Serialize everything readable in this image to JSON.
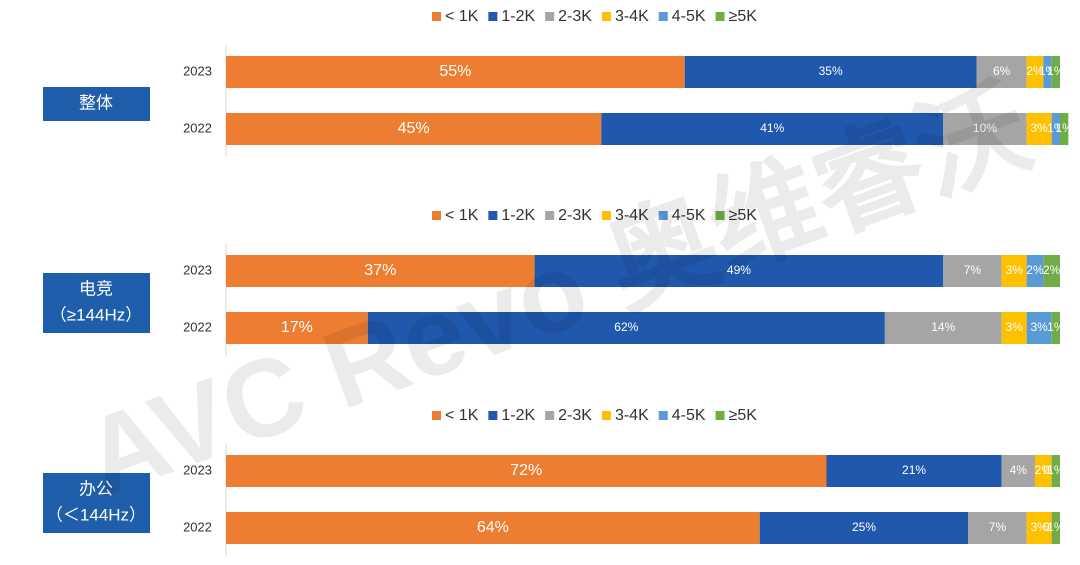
{
  "watermark": "AVC Revo 奥维睿沃",
  "chart_data": [
    {
      "type": "bar",
      "orientation": "horizontal",
      "stacked": true,
      "group_label": [
        "整体"
      ],
      "categories": [
        "2023",
        "2022"
      ],
      "xlim": [
        0,
        100
      ],
      "series": [
        {
          "name": "< 1K",
          "color": "#ed7d31",
          "values": [
            55,
            45
          ],
          "value_labels": [
            "55%",
            "45%"
          ]
        },
        {
          "name": "1-2K",
          "color": "#2058ad",
          "values": [
            35,
            41
          ],
          "value_labels": [
            "35%",
            "41%"
          ]
        },
        {
          "name": "2-3K",
          "color": "#a5a5a5",
          "values": [
            6,
            10
          ],
          "value_labels": [
            "6%",
            "10%"
          ]
        },
        {
          "name": "3-4K",
          "color": "#ffc000",
          "values": [
            2,
            3
          ],
          "value_labels": [
            "2%",
            "3%"
          ]
        },
        {
          "name": "4-5K",
          "color": "#5b9bd5",
          "values": [
            1,
            1
          ],
          "value_labels": [
            "1%",
            "1%"
          ]
        },
        {
          "name": "≥5K",
          "color": "#70ad47",
          "values": [
            1,
            1
          ],
          "value_labels": [
            "1%",
            "1%"
          ]
        }
      ]
    },
    {
      "type": "bar",
      "orientation": "horizontal",
      "stacked": true,
      "group_label": [
        "电竞",
        "（≥144Hz）"
      ],
      "categories": [
        "2023",
        "2022"
      ],
      "xlim": [
        0,
        100
      ],
      "series": [
        {
          "name": "< 1K",
          "color": "#ed7d31",
          "values": [
            37,
            17
          ],
          "value_labels": [
            "37%",
            "17%"
          ]
        },
        {
          "name": "1-2K",
          "color": "#2058ad",
          "values": [
            49,
            62
          ],
          "value_labels": [
            "49%",
            "62%"
          ]
        },
        {
          "name": "2-3K",
          "color": "#a5a5a5",
          "values": [
            7,
            14
          ],
          "value_labels": [
            "7%",
            "14%"
          ]
        },
        {
          "name": "3-4K",
          "color": "#ffc000",
          "values": [
            3,
            3
          ],
          "value_labels": [
            "3%",
            "3%"
          ]
        },
        {
          "name": "4-5K",
          "color": "#5b9bd5",
          "values": [
            2,
            3
          ],
          "value_labels": [
            "2%",
            "3%"
          ]
        },
        {
          "name": "≥5K",
          "color": "#70ad47",
          "values": [
            2,
            1
          ],
          "value_labels": [
            "2%",
            "1%"
          ]
        }
      ]
    },
    {
      "type": "bar",
      "orientation": "horizontal",
      "stacked": true,
      "group_label": [
        "办公",
        "（＜144Hz）"
      ],
      "categories": [
        "2023",
        "2022"
      ],
      "xlim": [
        0,
        100
      ],
      "series": [
        {
          "name": "< 1K",
          "color": "#ed7d31",
          "values": [
            72,
            64
          ],
          "value_labels": [
            "72%",
            "64%"
          ]
        },
        {
          "name": "1-2K",
          "color": "#2058ad",
          "values": [
            21,
            25
          ],
          "value_labels": [
            "21%",
            "25%"
          ]
        },
        {
          "name": "2-3K",
          "color": "#a5a5a5",
          "values": [
            4,
            7
          ],
          "value_labels": [
            "4%",
            "7%"
          ]
        },
        {
          "name": "3-4K",
          "color": "#ffc000",
          "values": [
            2,
            3
          ],
          "value_labels": [
            "2%",
            "3%"
          ]
        },
        {
          "name": "4-5K",
          "color": "#5b9bd5",
          "values": [
            0,
            0
          ],
          "value_labels": [
            "0%",
            "0%"
          ]
        },
        {
          "name": "≥5K",
          "color": "#70ad47",
          "values": [
            1,
            1
          ],
          "value_labels": [
            "1%",
            "1%"
          ]
        }
      ]
    }
  ]
}
